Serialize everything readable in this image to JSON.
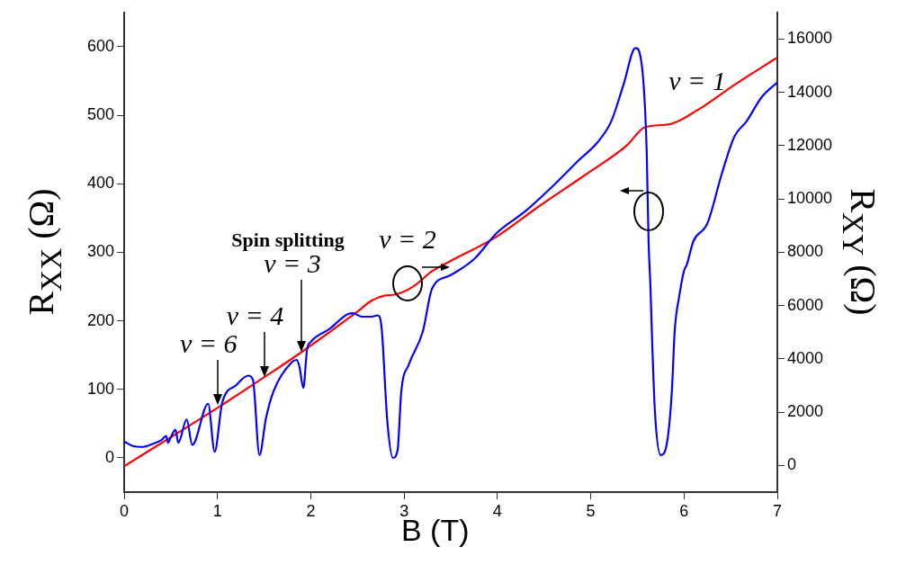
{
  "chart_data": {
    "type": "line",
    "xlabel": "B (T)",
    "ylabel": "R$_{XX}$ (Ω)",
    "y2label": "R$_{XY}$ (Ω)",
    "xlim": [
      0,
      7
    ],
    "xticks": [
      0,
      1,
      2,
      3,
      4,
      5,
      6,
      7
    ],
    "ylim": [
      -50,
      650
    ],
    "yticks": [
      0,
      100,
      200,
      300,
      400,
      500,
      600
    ],
    "y2lim": [
      -1000,
      17000
    ],
    "y2ticks": [
      0,
      2000,
      4000,
      6000,
      8000,
      10000,
      12000,
      14000,
      16000
    ],
    "legend": false,
    "annotations": [
      "Spin splitting",
      "ν = 2",
      "ν = 1",
      {
        "text": "ν = 6",
        "x": 1,
        "y": 72
      },
      {
        "text": "ν = 4",
        "x": 1.5,
        "y": 113
      },
      {
        "text": "ν = 3",
        "x": 1.9,
        "y": 150
      }
    ],
    "series": [
      {
        "color": "#0000ff",
        "x": [
          0,
          0.1,
          0.2,
          0.3,
          0.4,
          0.45,
          0.47,
          0.5,
          0.55,
          0.58,
          0.67,
          0.73,
          0.9,
          0.97,
          1.05,
          1.2,
          1.33,
          1.38,
          1.45,
          1.52,
          1.6,
          1.8,
          1.85,
          1.88,
          1.92,
          1.96,
          2.0,
          2.2,
          2.4,
          2.45,
          2.55,
          2.65,
          2.72,
          2.76,
          2.82,
          2.88,
          2.93,
          2.97,
          3.05,
          3.2,
          3.3,
          3.49,
          3.75,
          4.0,
          4.3,
          4.62,
          4.87,
          5.07,
          5.22,
          5.35,
          5.48,
          5.55,
          5.6,
          5.62,
          5.64,
          5.66,
          5.69,
          5.75,
          5.82,
          5.87,
          5.9,
          5.95,
          6.0,
          6.03,
          6.1,
          6.25,
          6.41,
          6.54,
          6.67,
          6.83,
          7.0
        ],
        "values": [
          24,
          17,
          16,
          20,
          26,
          32,
          22,
          30,
          41,
          22,
          56,
          19,
          79,
          9,
          80,
          106,
          120,
          114,
          4,
          58,
          97,
          140,
          143,
          132,
          102,
          158,
          169,
          188,
          210,
          211,
          206,
          206,
          208,
          188,
          54,
          0,
          11,
          97,
          136,
          184,
          247,
          266,
          290,
          329,
          360,
          400,
          434,
          460,
          491,
          544,
          598,
          570,
          447,
          316,
          250,
          164,
          63,
          4,
          24,
          98,
          185,
          237,
          273,
          282,
          316,
          342,
          417,
          469,
          491,
          526,
          548
        ]
      },
      {
        "color": "#ff0000",
        "axis": "y2",
        "x": [
          0,
          1,
          1.5,
          1.9,
          2.5,
          2.65,
          2.8,
          2.9,
          3.1,
          3.3,
          3.49,
          3.97,
          4.46,
          4.94,
          5.39,
          5.58,
          5.84,
          6.16,
          6.54,
          6.99
        ],
        "values": [
          -30,
          2160,
          3310,
          4250,
          5770,
          6180,
          6380,
          6410,
          6720,
          7290,
          7660,
          8540,
          9760,
          10900,
          12020,
          12690,
          12800,
          13370,
          14280,
          15290
        ]
      }
    ]
  }
}
